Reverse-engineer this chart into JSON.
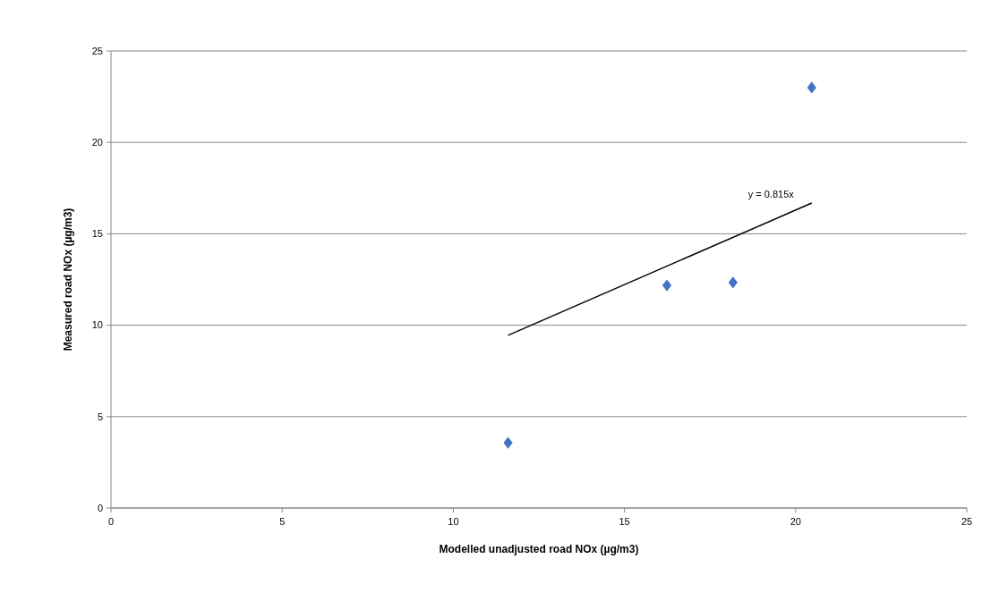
{
  "chart_data": {
    "type": "scatter",
    "xlabel": "Modelled unadjusted road NOx (µg/m3)",
    "ylabel": "Measured road NOx (µg/m3)",
    "xlim": [
      0,
      25
    ],
    "xticks": [
      0,
      5,
      10,
      15,
      20,
      25
    ],
    "ylim": [
      0,
      25
    ],
    "yticks": [
      0,
      5,
      10,
      15,
      20,
      25
    ],
    "grid": "y",
    "marker": "diamond",
    "series": [
      {
        "color": "#4472c4",
        "x": [
          11.6,
          16.24,
          18.17,
          20.47
        ],
        "values": [
          3.57,
          12.18,
          12.34,
          23.0
        ]
      },
      {
        "type": "line",
        "color": "#000000",
        "x": [
          11.6,
          20.47
        ],
        "values": [
          9.45,
          16.68
        ],
        "marker": "none"
      }
    ],
    "annotations": [
      "y = 0.815x"
    ]
  }
}
